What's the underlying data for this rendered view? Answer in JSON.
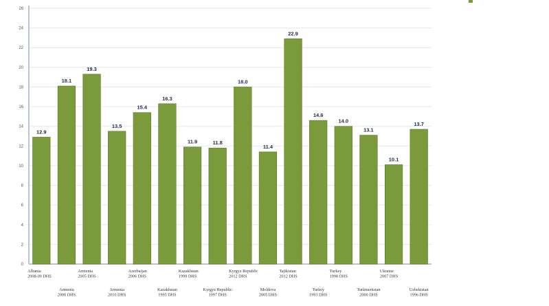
{
  "chart_data": {
    "type": "bar",
    "title": "",
    "xlabel": "",
    "ylabel": "",
    "ylim": [
      0,
      26
    ],
    "yticks": [
      0,
      2,
      4,
      6,
      8,
      10,
      12,
      14,
      16,
      18,
      20,
      22,
      24,
      26
    ],
    "grid": true,
    "legend_position": "top-right",
    "bar_color": "#7a9a3c",
    "categories": [
      [
        "Albania",
        "2008-09 DHS"
      ],
      [
        "Armenia",
        "2000 DHS"
      ],
      [
        "Armenia",
        "2005 DHS"
      ],
      [
        "Armenia",
        "2010 DHS"
      ],
      [
        "Azerbaijan",
        "2006 DHS"
      ],
      [
        "Kazakhstan",
        "1995 DHS"
      ],
      [
        "Kazakhstan",
        "1999 DHS"
      ],
      [
        "Kyrgyz Republic",
        "1997 DHS"
      ],
      [
        "Kyrgyz Republic",
        "2012 DHS"
      ],
      [
        "Moldova",
        "2005 DHS"
      ],
      [
        "Tajikistan",
        "2012 DHS"
      ],
      [
        "Turkey",
        "1993 DHS"
      ],
      [
        "Turkey",
        "1998 DHS"
      ],
      [
        "Turkmenistan",
        "2000 DHS"
      ],
      [
        "Ukraine",
        "2007 DHS"
      ],
      [
        "Uzbekistan",
        "1996 DHS"
      ]
    ],
    "values": [
      12.9,
      18.1,
      19.3,
      13.5,
      15.4,
      16.3,
      11.9,
      11.8,
      18.0,
      11.4,
      22.9,
      14.6,
      14.0,
      13.1,
      10.1,
      13.7
    ],
    "value_labels": [
      "12.9",
      "18.1",
      "19.3",
      "13.5",
      "15.4",
      "16.3",
      "11.9",
      "11.8",
      "18.0",
      "11.4",
      "22.9",
      "14.6",
      "14.0",
      "13.1",
      "10.1",
      "13.7"
    ]
  }
}
